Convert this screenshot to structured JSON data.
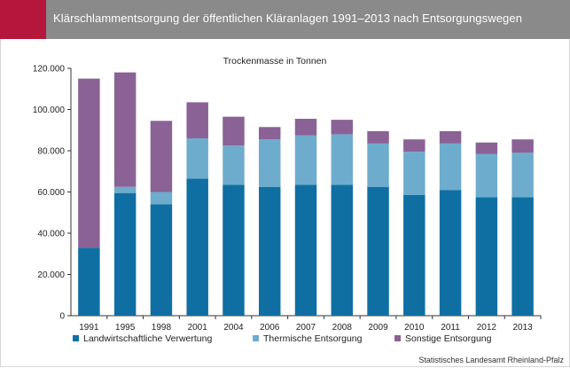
{
  "header": {
    "title": "Klärschlammentsorgung der öffentlichen Kläranlagen 1991–2013 nach Entsorgungswegen",
    "accent_color": "#b5163c",
    "background_color": "#8a8a8a"
  },
  "source": "Statistisches Landesamt Rheinland-Pfalz",
  "chart_data": {
    "type": "bar",
    "stacked": true,
    "title": "Trockenmasse in Tonnen",
    "xlabel": "",
    "ylabel": "",
    "ylim": [
      0,
      120000
    ],
    "yticks": [
      0,
      20000,
      40000,
      60000,
      80000,
      100000,
      120000
    ],
    "ytick_labels": [
      "0",
      "20.000",
      "40.000",
      "60.000",
      "80.000",
      "100.000",
      "120.000"
    ],
    "grid": false,
    "legend_position": "bottom",
    "categories": [
      "1991",
      "1995",
      "1998",
      "2001",
      "2004",
      "2006",
      "2007",
      "2008",
      "2009",
      "2010",
      "2011",
      "2012",
      "2013"
    ],
    "series": [
      {
        "name": "Landwirtschaftliche Verwertung",
        "color": "#0f6fa3",
        "values": [
          33000,
          59500,
          54000,
          66500,
          63500,
          62500,
          63500,
          63500,
          62500,
          58500,
          61000,
          57500,
          57500
        ]
      },
      {
        "name": "Thermische Entsorgung",
        "color": "#6eaccd",
        "values": [
          0,
          3000,
          6000,
          19500,
          19000,
          23000,
          24000,
          24500,
          21000,
          21000,
          22500,
          21000,
          21500
        ]
      },
      {
        "name": "Sonstige Entsorgung",
        "color": "#8a6296",
        "values": [
          82000,
          55500,
          34500,
          17500,
          14000,
          6000,
          8000,
          7000,
          6000,
          6000,
          6000,
          5500,
          6500
        ]
      }
    ]
  }
}
